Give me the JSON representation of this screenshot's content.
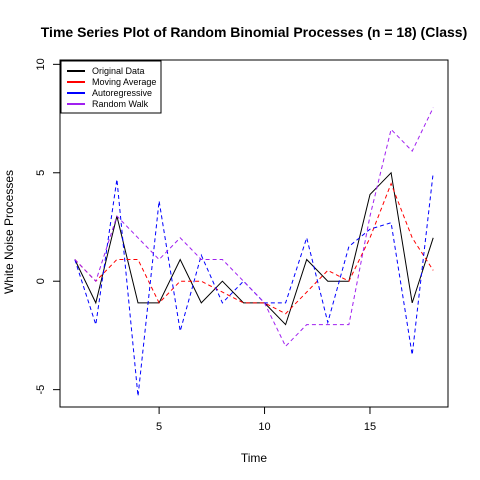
{
  "chart_data": {
    "type": "line",
    "title": "Time Series Plot of Random Binomial Processes (n = 18) (Class)",
    "xlabel": "Time",
    "ylabel": "White Noise Processes",
    "xlim": [
      0.3,
      18.7
    ],
    "ylim": [
      -5.8,
      10.2
    ],
    "x_ticks": [
      5,
      10,
      15
    ],
    "y_ticks": [
      -5,
      0,
      5,
      10
    ],
    "x_tick_labels": [
      "5",
      "10",
      "15"
    ],
    "y_tick_labels": [
      "-5",
      "0",
      "5",
      "10"
    ],
    "grid": false,
    "legend_position": "top-left",
    "x": [
      1,
      2,
      3,
      4,
      5,
      6,
      7,
      8,
      9,
      10,
      11,
      12,
      13,
      14,
      15,
      16,
      17,
      18
    ],
    "series": [
      {
        "name": "Original Data",
        "color": "#000000",
        "dashed": false,
        "values": [
          1,
          -1,
          3,
          -1,
          -1,
          1,
          -1,
          0,
          -1,
          -1,
          -2,
          1,
          0,
          0,
          4,
          5,
          -1,
          2
        ]
      },
      {
        "name": "Moving Average",
        "color": "#ff0000",
        "dashed": true,
        "values": [
          1,
          0,
          1,
          1,
          -1,
          0,
          0,
          -0.5,
          -1,
          -1,
          -1.5,
          -0.5,
          0.5,
          0,
          2,
          4.5,
          2,
          0.5
        ]
      },
      {
        "name": "Autoregressive",
        "color": "#0000ff",
        "dashed": true,
        "values": [
          1,
          -2,
          4.7,
          -5.3,
          3.7,
          -2.3,
          1.2,
          -1,
          0,
          -1,
          -1,
          2,
          -1.9,
          1.6,
          2.4,
          2.7,
          -3.4,
          5
        ]
      },
      {
        "name": "Random Walk",
        "color": "#a020f0",
        "dashed": true,
        "values": [
          1,
          0,
          3,
          2,
          1,
          2,
          1,
          1,
          0,
          -1,
          -3,
          -2,
          -2,
          -2,
          3,
          7,
          6,
          8
        ]
      }
    ]
  }
}
